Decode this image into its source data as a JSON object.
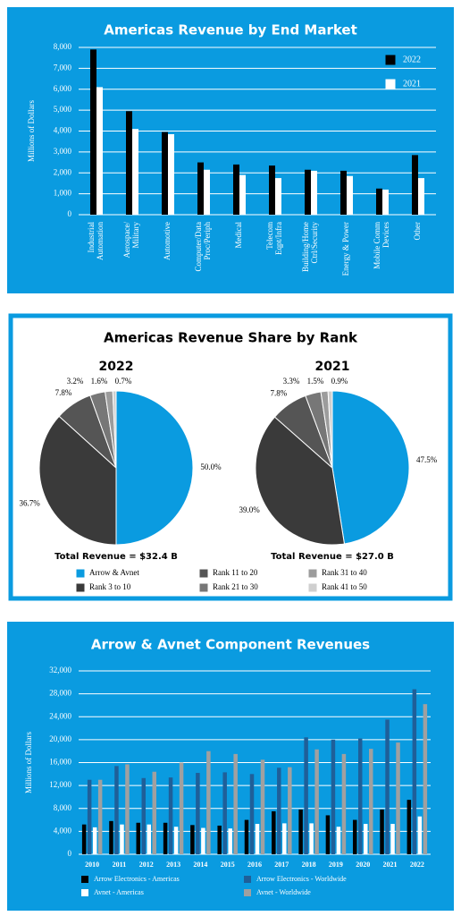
{
  "chart_data": [
    {
      "type": "bar",
      "title": "Americas Revenue by End Market",
      "y_label": "Millions of Dollars",
      "categories": [
        [
          "Industrial",
          "Automation"
        ],
        [
          "Aerospace/",
          "Military"
        ],
        [
          "Automotive"
        ],
        [
          "Computer/Data",
          "Proc/Periph"
        ],
        [
          "Medical"
        ],
        [
          "Telecom",
          "Eqpt/Infra"
        ],
        [
          "Building/Home",
          "Ctrl/Security"
        ],
        [
          "Energy & Power"
        ],
        [
          "Mobile Comm",
          "Devices"
        ],
        [
          "Other"
        ]
      ],
      "series": [
        {
          "name": "2022",
          "color": "#000000",
          "values": [
            7900,
            4950,
            3950,
            2500,
            2400,
            2350,
            2150,
            2100,
            1250,
            2850
          ]
        },
        {
          "name": "2021",
          "color": "#ffffff",
          "values": [
            6100,
            4100,
            3850,
            2150,
            1900,
            1750,
            2100,
            1850,
            1200,
            1750
          ]
        }
      ],
      "ylim": [
        0,
        8000
      ],
      "yticks": [
        0,
        {
          "value": 1000,
          "label": "1,000"
        },
        {
          "value": 2000,
          "label": "2,000"
        },
        {
          "value": 3000,
          "label": "3,000"
        },
        {
          "value": 4000,
          "label": "4,000"
        },
        {
          "value": 5000,
          "label": "5,000"
        },
        {
          "value": 6000,
          "label": "6,000"
        },
        {
          "value": 7000,
          "label": "7,000"
        },
        {
          "value": 8000,
          "label": "8,000"
        }
      ],
      "grid": true,
      "legend": "top-right"
    },
    {
      "type": "pie",
      "title": "Americas Revenue Share by Rank",
      "categories": [
        "Arrow & Avnet",
        "Rank 3 to 10",
        "Rank 11 to 20",
        "Rank 21 to 30",
        "Rank 31 to 40",
        "Rank 41 to 50"
      ],
      "colors": [
        "#0a9be0",
        "#3a3a3a",
        "#555555",
        "#777777",
        "#9c9c9c",
        "#cfcfcf"
      ],
      "pies": [
        {
          "title": "2022",
          "values": [
            50.0,
            36.7,
            7.8,
            3.2,
            1.6,
            0.7
          ],
          "value_labels": [
            "50.0%",
            "36.7%",
            "7.8%",
            "3.2%",
            "1.6%",
            "0.7%"
          ],
          "total": "Total Revenue = $32.4 B"
        },
        {
          "title": "2021",
          "values": [
            47.5,
            39.0,
            7.8,
            3.3,
            1.5,
            0.9
          ],
          "value_labels": [
            "47.5%",
            "39.0%",
            "7.8%",
            "3.3%",
            "1.5%",
            "0.9%"
          ],
          "total": "Total Revenue = $27.0 B"
        }
      ]
    },
    {
      "type": "bar",
      "title": "Arrow & Avnet Component Revenues",
      "y_label": "Millions of Dollars",
      "categories": [
        [
          "2010"
        ],
        [
          "2011"
        ],
        [
          "2012"
        ],
        [
          "2013"
        ],
        [
          "2014"
        ],
        [
          "2015"
        ],
        [
          "2016"
        ],
        [
          "2017"
        ],
        [
          "2018"
        ],
        [
          "2019"
        ],
        [
          "2020"
        ],
        [
          "2021"
        ],
        [
          "2022"
        ]
      ],
      "series": [
        {
          "name": "Arrow Electronics - Americas",
          "color": "#000000",
          "values": [
            5200,
            5800,
            5500,
            5500,
            5100,
            5000,
            6000,
            7500,
            7800,
            6800,
            6000,
            7800,
            9500
          ]
        },
        {
          "name": "Arrow Electronics - Worldwide",
          "color": "#1f5f99",
          "values": [
            13000,
            15400,
            13300,
            13400,
            14200,
            14300,
            14000,
            15100,
            20400,
            20000,
            20200,
            23500,
            28800
          ]
        },
        {
          "name": "Avnet - Americas",
          "color": "#ffffff",
          "values": [
            4700,
            5200,
            5200,
            4800,
            4600,
            4500,
            5300,
            5400,
            5400,
            4800,
            5300,
            5300,
            6600
          ]
        },
        {
          "name": "Avnet - Worldwide",
          "color": "#a0a0a0",
          "values": [
            13000,
            15700,
            14400,
            16000,
            18000,
            17500,
            16500,
            15200,
            18300,
            17500,
            18400,
            19500,
            26200
          ]
        }
      ],
      "ylim": [
        0,
        32000
      ],
      "yticks": [
        0,
        {
          "value": 4000,
          "label": "4,000"
        },
        {
          "value": 8000,
          "label": "8,000"
        },
        {
          "value": 12000,
          "label": "12,000"
        },
        {
          "value": 16000,
          "label": "16,000"
        },
        {
          "value": 20000,
          "label": "20,000"
        },
        {
          "value": 24000,
          "label": "24,000"
        },
        {
          "value": 28000,
          "label": "28,000"
        },
        {
          "value": 32000,
          "label": "32,000"
        }
      ],
      "grid": true,
      "legend": "bottom"
    }
  ]
}
